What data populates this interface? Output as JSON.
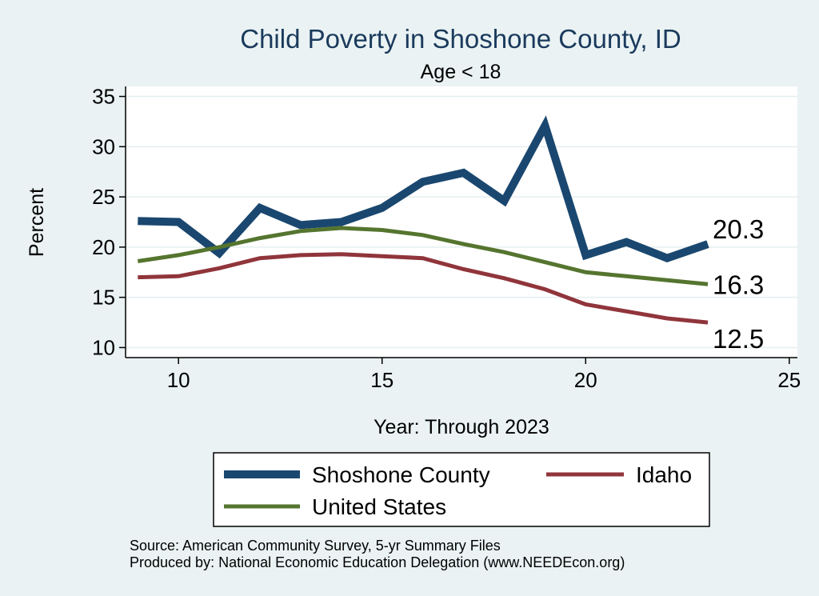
{
  "chart_data": {
    "type": "line",
    "title": "Child Poverty in Shoshone County, ID",
    "subtitle": "Age < 18",
    "xlabel": "Year: Through 2023",
    "ylabel": "Percent",
    "xlim": [
      8.7,
      25.2
    ],
    "ylim": [
      9,
      36
    ],
    "xticks": [
      10,
      15,
      20,
      25
    ],
    "yticks": [
      10,
      15,
      20,
      25,
      30,
      35
    ],
    "grid": true,
    "x": [
      9,
      10,
      11,
      12,
      13,
      14,
      15,
      16,
      17,
      18,
      19,
      20,
      21,
      22,
      23
    ],
    "series": [
      {
        "name": "Shoshone County",
        "color": "#1a476f",
        "values": [
          22.6,
          22.5,
          19.4,
          23.9,
          22.2,
          22.5,
          23.9,
          26.5,
          27.4,
          24.6,
          32.1,
          19.2,
          20.5,
          18.9,
          20.3
        ],
        "end_label": "20.3"
      },
      {
        "name": "United States",
        "color": "#55752f",
        "values": [
          18.6,
          19.2,
          20.0,
          20.9,
          21.6,
          21.9,
          21.7,
          21.2,
          20.3,
          19.5,
          18.5,
          17.5,
          17.1,
          16.7,
          16.3
        ],
        "end_label": "16.3"
      },
      {
        "name": "Idaho",
        "color": "#90353b",
        "values": [
          17.0,
          17.1,
          17.9,
          18.9,
          19.2,
          19.3,
          19.1,
          18.9,
          17.8,
          16.9,
          15.8,
          14.3,
          13.6,
          12.9,
          12.5
        ],
        "end_label": "12.5"
      }
    ],
    "legend": {
      "placement": "bottom",
      "entries": [
        "Shoshone County",
        "Idaho",
        "United States"
      ]
    }
  },
  "notes": {
    "source": "Source: American Community Survey, 5-yr Summary Files",
    "produced_by": "Produced by: National Economic Education Delegation (www.NEEDEcon.org)"
  }
}
